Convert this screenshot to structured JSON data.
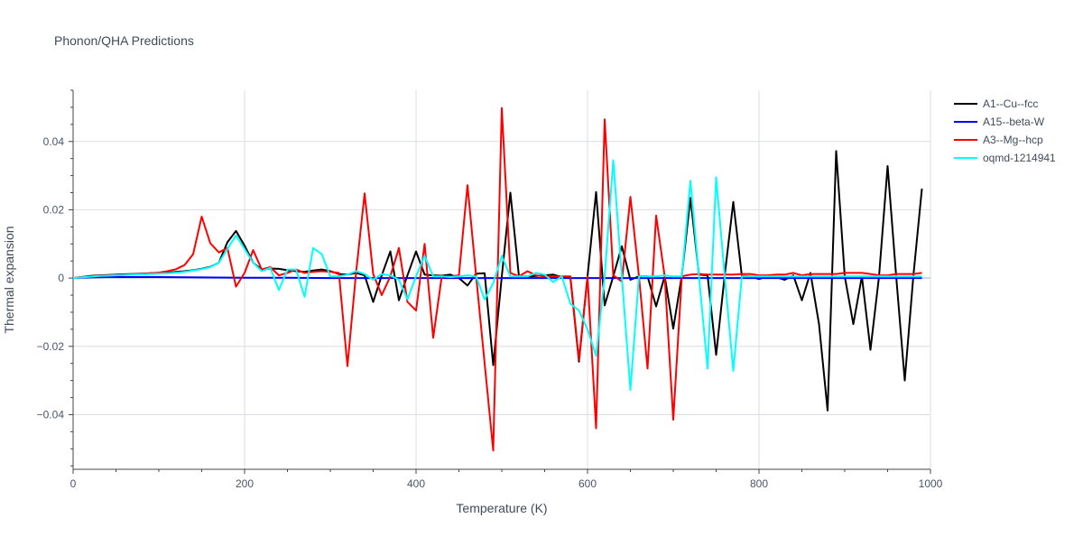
{
  "chart_data": {
    "type": "line",
    "title": "Phonon/QHA Predictions",
    "xlabel": "Temperature (K)",
    "ylabel": "Thermal expansion",
    "xlim": [
      0,
      1000
    ],
    "ylim": [
      -0.056,
      0.055
    ],
    "xticks": [
      0,
      200,
      400,
      600,
      800,
      1000
    ],
    "xtick_labels": [
      "0",
      "200",
      "400",
      "600",
      "800",
      "1000"
    ],
    "yticks": [
      0.04,
      0.02,
      0,
      -0.02,
      -0.04
    ],
    "ytick_labels": [
      "0.04",
      "0.02",
      "0",
      "−0.02",
      "−0.04"
    ],
    "grid": true,
    "legend_position": "top-right",
    "series": [
      {
        "name": "A1--Cu--fcc",
        "color": "#000000",
        "x": [
          0,
          10,
          20,
          30,
          40,
          50,
          60,
          70,
          80,
          90,
          100,
          110,
          120,
          130,
          140,
          150,
          160,
          170,
          180,
          190,
          200,
          210,
          220,
          230,
          240,
          250,
          260,
          270,
          280,
          290,
          300,
          310,
          320,
          330,
          340,
          350,
          360,
          370,
          380,
          390,
          400,
          410,
          420,
          430,
          440,
          450,
          460,
          470,
          480,
          490,
          500,
          510,
          520,
          530,
          540,
          550,
          560,
          570,
          580,
          590,
          600,
          610,
          620,
          630,
          640,
          650,
          660,
          670,
          680,
          690,
          700,
          710,
          720,
          730,
          740,
          750,
          760,
          770,
          780,
          790,
          800,
          810,
          820,
          830,
          840,
          850,
          860,
          870,
          880,
          890,
          900,
          910,
          920,
          930,
          940,
          950,
          960,
          970,
          980,
          990
        ],
        "values": [
          0.0,
          0.0003,
          0.0006,
          0.0008,
          0.0009,
          0.001,
          0.0011,
          0.0012,
          0.0013,
          0.0014,
          0.0015,
          0.0016,
          0.0018,
          0.002,
          0.0023,
          0.0027,
          0.0033,
          0.0045,
          0.0105,
          0.0138,
          0.0095,
          0.0045,
          0.0025,
          0.0028,
          0.0027,
          0.0023,
          0.002,
          0.0018,
          0.0022,
          0.0025,
          0.002,
          0.0012,
          0.001,
          0.0015,
          0.0008,
          -0.007,
          0.0008,
          0.0078,
          -0.0065,
          0.0008,
          0.0078,
          0.001,
          0.0008,
          0.0007,
          0.001,
          0.0,
          -0.0022,
          0.0013,
          0.0014,
          -0.0255,
          0.0005,
          0.025,
          0.0005,
          0.0005,
          0.0006,
          0.0008,
          0.001,
          0.0003,
          0.0002,
          -0.0245,
          0.0005,
          0.0252,
          -0.008,
          0.0005,
          0.0093,
          -0.0005,
          0.0005,
          0.0005,
          -0.0083,
          0.0005,
          -0.0148,
          0.0008,
          0.0235,
          0.001,
          0.0008,
          -0.0225,
          0.0008,
          0.0223,
          0.0006,
          0.0005,
          -0.0003,
          0.0005,
          0.0003,
          -0.0005,
          0.0008,
          -0.0065,
          0.0015,
          -0.0135,
          -0.0388,
          0.0372,
          0.0005,
          -0.0135,
          0.0005,
          -0.021,
          0.0005,
          0.0328,
          0.0005,
          -0.03,
          0.0005,
          0.0262
        ]
      },
      {
        "name": "A15--beta-W",
        "color": "#0000ff",
        "x": [
          0,
          20,
          40,
          60,
          80,
          100,
          150,
          200,
          250,
          300,
          400,
          500,
          600,
          700,
          800,
          900,
          990
        ],
        "values": [
          0.0,
          0.0002,
          0.0003,
          0.0003,
          0.0003,
          0.0003,
          0.0002,
          0.0001,
          0.0001,
          0.0,
          0.0,
          0.0,
          0.0,
          0.0,
          0.0,
          0.0,
          0.0
        ]
      },
      {
        "name": "A3--Mg--hcp",
        "color": "#ff0000",
        "x": [
          0,
          10,
          20,
          30,
          40,
          50,
          60,
          70,
          80,
          90,
          100,
          110,
          120,
          130,
          140,
          150,
          160,
          170,
          180,
          190,
          200,
          210,
          220,
          230,
          240,
          250,
          260,
          270,
          280,
          290,
          300,
          310,
          320,
          330,
          340,
          350,
          360,
          370,
          380,
          390,
          400,
          410,
          420,
          430,
          440,
          450,
          460,
          470,
          480,
          490,
          500,
          510,
          520,
          530,
          540,
          550,
          560,
          570,
          580,
          590,
          600,
          610,
          620,
          630,
          640,
          650,
          660,
          670,
          680,
          690,
          700,
          710,
          720,
          730,
          740,
          750,
          760,
          770,
          780,
          790,
          800,
          810,
          820,
          830,
          840,
          850,
          860,
          870,
          880,
          890,
          900,
          910,
          920,
          930,
          940,
          950,
          960,
          970,
          980,
          990
        ],
        "values": [
          0.0,
          0.0003,
          0.0005,
          0.0007,
          0.0008,
          0.0009,
          0.001,
          0.0011,
          0.0012,
          0.0014,
          0.0016,
          0.002,
          0.0026,
          0.0038,
          0.007,
          0.018,
          0.0102,
          0.0075,
          0.0088,
          -0.0025,
          0.0015,
          0.0082,
          0.0025,
          0.0032,
          0.0008,
          0.0015,
          0.0025,
          0.0015,
          0.0018,
          0.002,
          0.0018,
          0.0015,
          -0.0258,
          0.0015,
          0.0248,
          0.0012,
          -0.005,
          0.0005,
          0.0088,
          -0.007,
          -0.0095,
          0.01,
          -0.0175,
          0.0005,
          0.0005,
          0.0008,
          0.0272,
          0.0008,
          -0.025,
          -0.0505,
          0.0498,
          0.0015,
          0.0005,
          0.002,
          0.0008,
          0.0005,
          0.0005,
          0.0005,
          0.0005,
          -0.024,
          0.0005,
          -0.044,
          0.0465,
          0.0008,
          -0.001,
          0.0238,
          0.0005,
          -0.0265,
          0.0183,
          0.0005,
          -0.0415,
          0.0005,
          0.001,
          0.0012,
          0.001,
          0.001,
          0.001,
          0.001,
          0.0012,
          0.0012,
          0.0008,
          0.0008,
          0.001,
          0.001,
          0.0015,
          0.0008,
          0.0012,
          0.0012,
          0.0012,
          0.0012,
          0.0015,
          0.0015,
          0.0015,
          0.0012,
          0.0008,
          0.0008,
          0.0012,
          0.0012,
          0.0012,
          0.0015
        ]
      },
      {
        "name": "oqmd-1214941",
        "color": "#00ffff",
        "x": [
          0,
          10,
          20,
          30,
          40,
          50,
          60,
          70,
          80,
          90,
          100,
          110,
          120,
          130,
          140,
          150,
          160,
          170,
          180,
          190,
          200,
          210,
          220,
          230,
          240,
          250,
          260,
          270,
          280,
          290,
          300,
          310,
          320,
          330,
          340,
          350,
          360,
          370,
          380,
          390,
          400,
          410,
          420,
          430,
          440,
          450,
          460,
          470,
          480,
          490,
          500,
          510,
          520,
          530,
          540,
          550,
          560,
          570,
          580,
          590,
          600,
          610,
          620,
          630,
          640,
          650,
          660,
          670,
          680,
          690,
          700,
          710,
          720,
          730,
          740,
          750,
          760,
          770,
          780,
          790,
          800,
          810,
          820,
          830,
          840,
          850,
          860,
          870,
          880,
          890,
          900,
          910,
          920,
          930,
          940,
          950,
          960,
          970,
          980,
          990
        ],
        "values": [
          0.0,
          0.0002,
          0.0004,
          0.0006,
          0.0007,
          0.0008,
          0.0009,
          0.001,
          0.0011,
          0.0012,
          0.0013,
          0.0014,
          0.0016,
          0.0018,
          0.0022,
          0.0026,
          0.0032,
          0.0045,
          0.0085,
          0.0125,
          0.0085,
          0.0045,
          0.002,
          0.003,
          -0.0035,
          0.0025,
          0.0025,
          -0.0055,
          0.0088,
          0.007,
          0.0005,
          0.0005,
          0.001,
          0.002,
          0.0012,
          -0.0005,
          0.0012,
          0.0008,
          -0.0005,
          -0.0062,
          0.0005,
          0.0065,
          0.0005,
          0.0005,
          0.0003,
          0.0005,
          0.0008,
          0.0005,
          -0.0062,
          -0.0015,
          0.0065,
          0.0005,
          0.0005,
          0.0005,
          0.0015,
          0.001,
          -0.0012,
          0.0005,
          -0.0075,
          -0.0095,
          -0.015,
          -0.0228,
          0.0005,
          0.0345,
          0.0005,
          -0.0328,
          0.0005,
          0.0005,
          0.0005,
          0.0008,
          0.0005,
          0.0005,
          0.0285,
          0.0005,
          -0.0265,
          0.0295,
          0.0005,
          -0.0272,
          0.0005,
          0.0005,
          0.0005,
          0.0005,
          0.0005,
          0.0005,
          0.0005,
          0.0005,
          0.0005,
          0.0005,
          0.0005,
          0.0005,
          0.0005,
          0.0005,
          0.0005,
          0.0005,
          0.0005,
          0.0005,
          0.0005,
          0.0005,
          0.0005,
          0.0005
        ]
      }
    ]
  }
}
